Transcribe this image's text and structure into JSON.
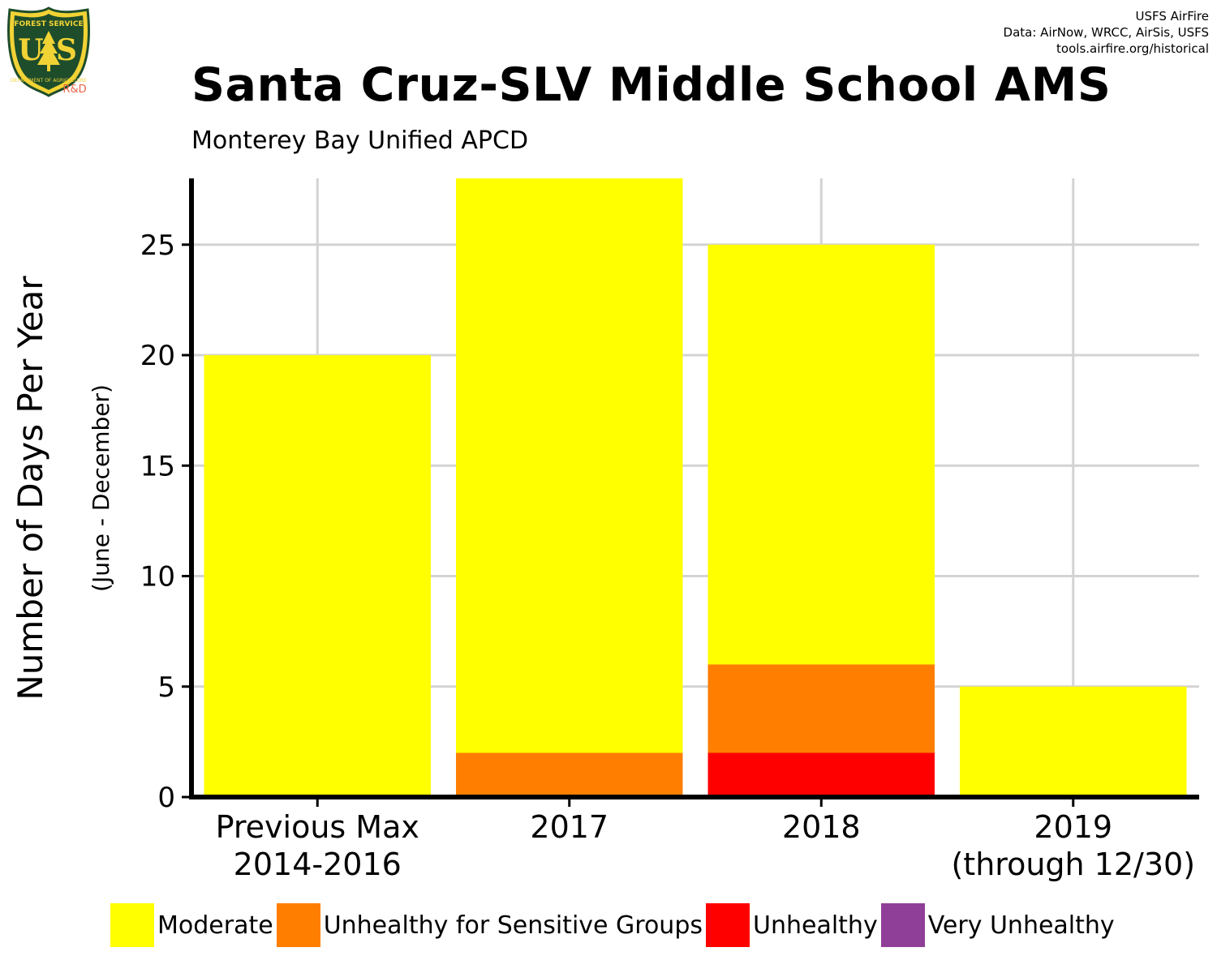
{
  "logo": {
    "top_text": "FOREST SERVICE",
    "letters": "US",
    "bottom_text": "DEPARTMENT OF AGRICULTURE",
    "badge": "R&D",
    "icon": "forest-service-shield-icon"
  },
  "credits": {
    "line1": "USFS AirFire",
    "line2": "Data: AirNow, WRCC, AirSis, USFS",
    "line3": "tools.airfire.org/historical"
  },
  "colors": {
    "moderate": "#ffff00",
    "usg": "#ff7e00",
    "unhealthy": "#ff0000",
    "very_unhealthy": "#8f3f97",
    "grid": "#d3d3d3",
    "axis": "#000000",
    "logo_green": "#1e4d2b",
    "logo_gold": "#f2d335",
    "badge": "#e8654a"
  },
  "chart_data": {
    "type": "bar",
    "stacked": true,
    "title": "Santa Cruz-SLV Middle School AMS",
    "subtitle": "Monterey Bay Unified APCD",
    "ylabel": "Number of Days Per Year",
    "ylabel_sub": "(June - December)",
    "categories": [
      [
        "Previous Max",
        "2014-2016"
      ],
      [
        "2017"
      ],
      [
        "2018"
      ],
      [
        "2019",
        "(through 12/30)"
      ]
    ],
    "series": [
      {
        "name": "Very Unhealthy",
        "values": [
          0,
          0,
          0,
          0
        ]
      },
      {
        "name": "Unhealthy",
        "values": [
          0,
          0,
          2,
          0
        ]
      },
      {
        "name": "Unhealthy for Sensitive Groups",
        "values": [
          0,
          2,
          4,
          0
        ]
      },
      {
        "name": "Moderate",
        "values": [
          20,
          26,
          19,
          5
        ]
      }
    ],
    "ylim": [
      0,
      28
    ],
    "yticks": [
      0,
      5,
      10,
      15,
      20,
      25
    ],
    "grid": true,
    "legend": {
      "position": "bottom",
      "entries": [
        "Moderate",
        "Unhealthy for Sensitive Groups",
        "Unhealthy",
        "Very Unhealthy"
      ]
    }
  }
}
